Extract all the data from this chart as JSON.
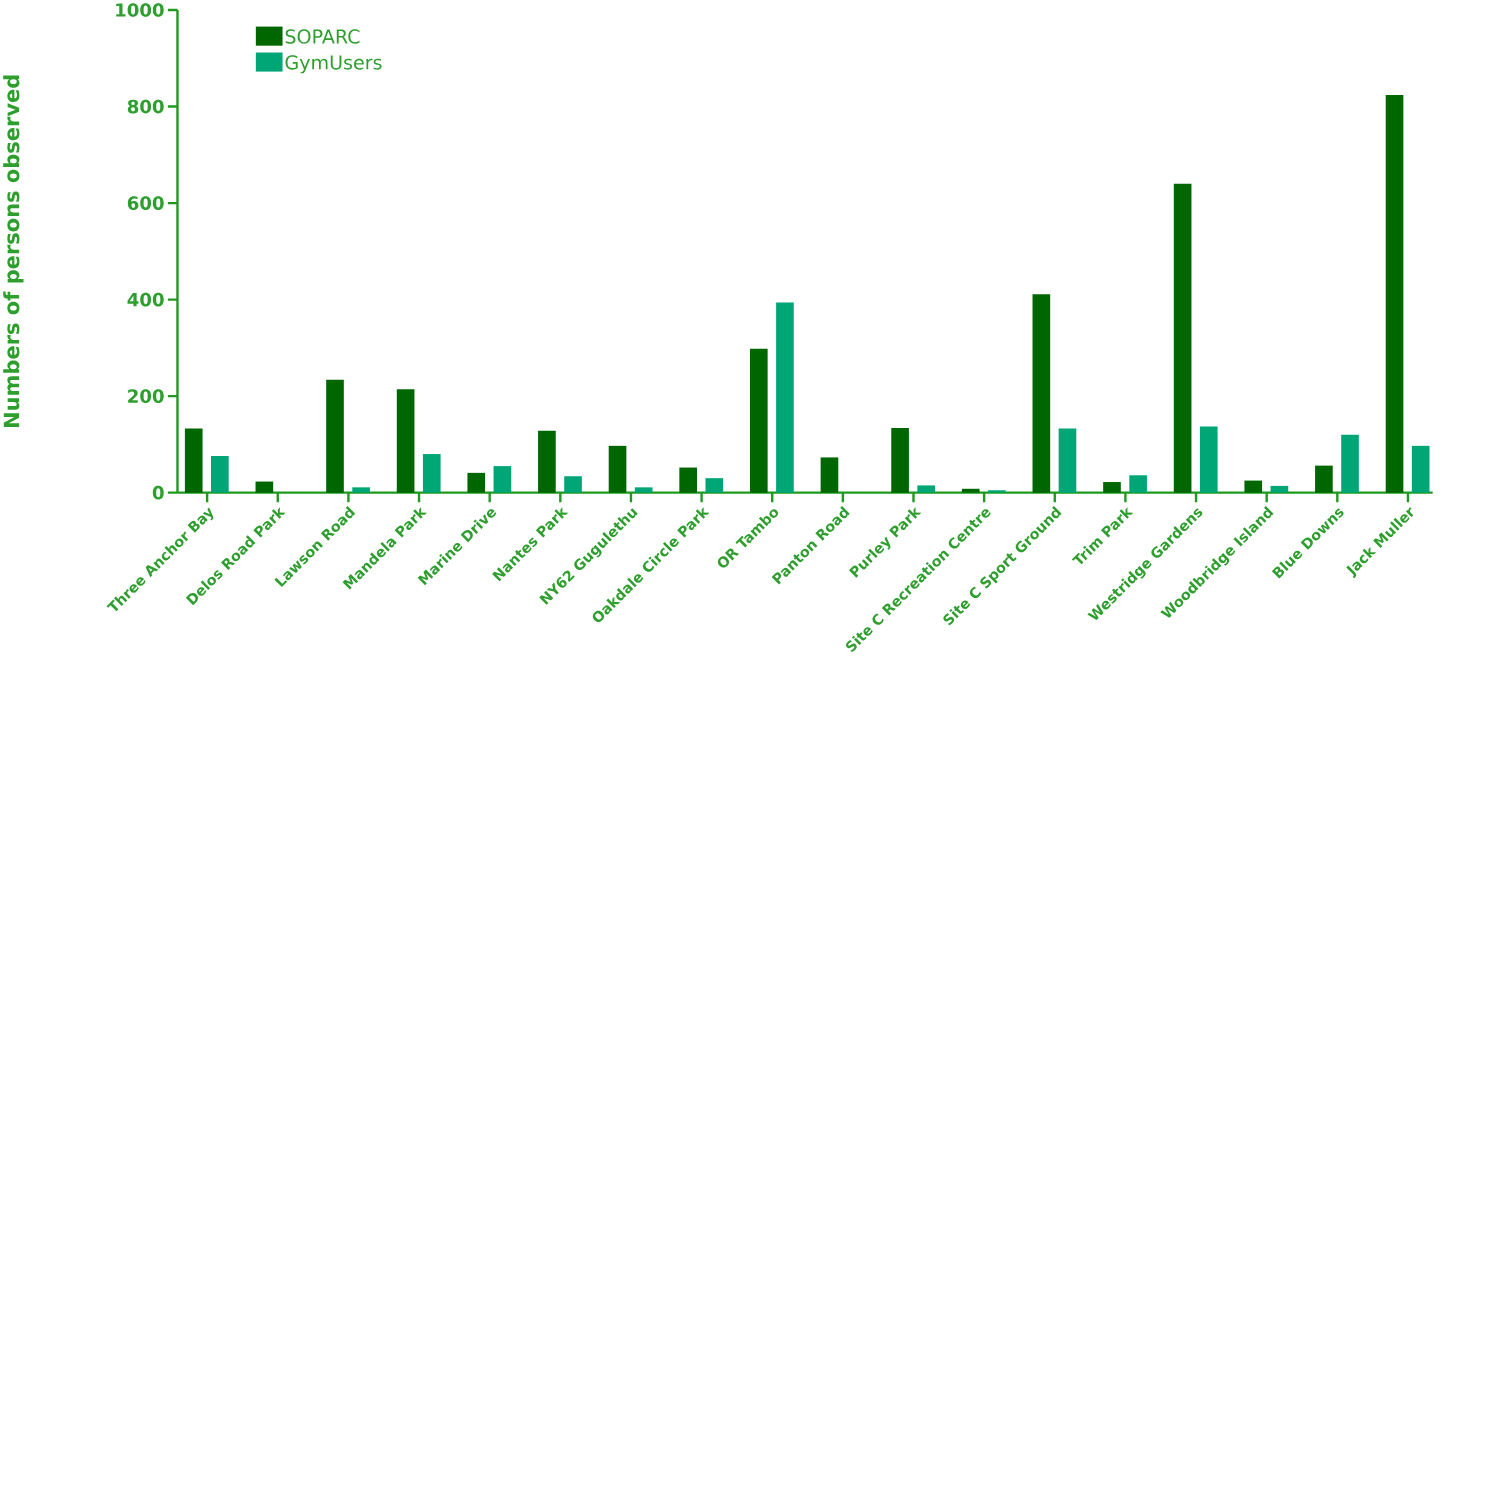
{
  "chart_data": {
    "type": "bar",
    "ylabel": "Numbers of persons observed",
    "categories": [
      "Three Anchor Bay",
      "Delos Road Park",
      "Lawson Road",
      "Mandela Park",
      "Marine Drive",
      "Nantes Park",
      "NY62 Gugulethu",
      "Oakdale Circle Park",
      "OR Tambo",
      "Panton Road",
      "Purley Park",
      "Site C Recreation Centre",
      "Site C Sport Ground",
      "Trim Park",
      "Westridge Gardens",
      "Woodbridge Island",
      "Blue Downs",
      "Jack Muller"
    ],
    "series": [
      {
        "name": "SOPARC",
        "color": "#006600",
        "values": [
          133,
          23,
          234,
          214,
          41,
          128,
          97,
          52,
          298,
          73,
          134,
          8,
          411,
          22,
          640,
          25,
          56,
          824
        ]
      },
      {
        "name": "GymUsers",
        "color": "#00a676",
        "values": [
          76,
          0,
          11,
          80,
          55,
          34,
          11,
          30,
          394,
          0,
          15,
          5,
          133,
          36,
          137,
          14,
          120,
          97
        ]
      }
    ],
    "ylim": [
      0,
      1000
    ],
    "yticks": [
      0,
      200,
      400,
      600,
      800,
      1000
    ],
    "grid": false,
    "legend": "top left"
  }
}
